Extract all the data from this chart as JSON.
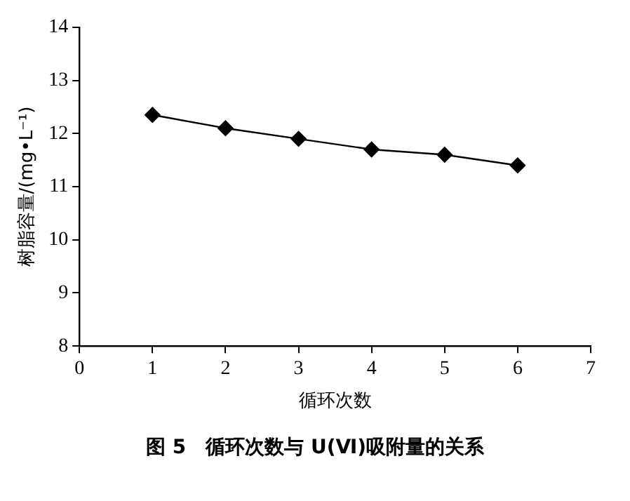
{
  "chart_data": {
    "type": "line",
    "xlabel": "循环次数",
    "ylabel": "树脂容量/(mg•L⁻¹)",
    "x": [
      1,
      2,
      3,
      4,
      5,
      6
    ],
    "series": [
      {
        "color": "#000000",
        "values": [
          12.35,
          12.1,
          11.9,
          11.7,
          11.6,
          11.4
        ]
      }
    ],
    "xlim": [
      0,
      7
    ],
    "xticks": [
      0,
      1,
      2,
      3,
      4,
      5,
      6,
      7
    ],
    "ylim": [
      8,
      14
    ],
    "yticks": [
      8,
      9,
      10,
      11,
      12,
      13,
      14
    ],
    "marker": "diamond",
    "line_style": "solid",
    "grid": false,
    "legend": false,
    "annotations": [
      "图 5　循环次数与 U(Ⅵ)吸附量的关系"
    ]
  }
}
